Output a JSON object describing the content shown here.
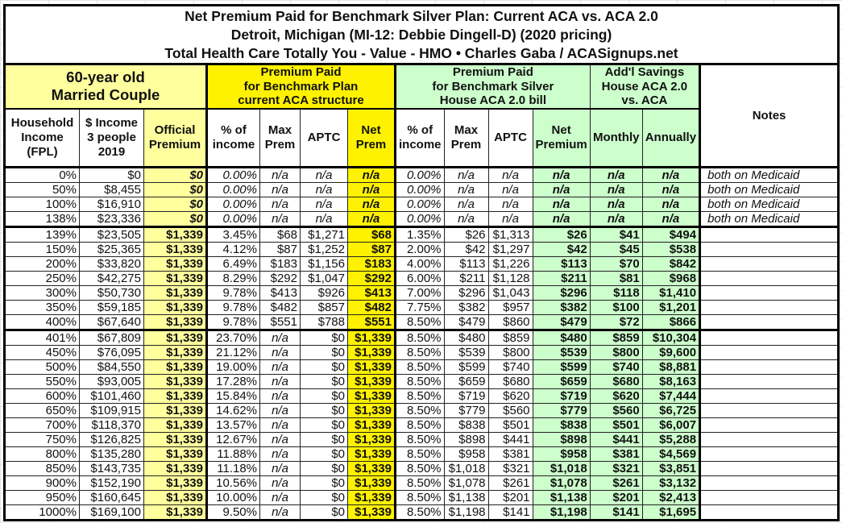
{
  "title": {
    "line1": "Net Premium Paid for Benchmark Silver Plan: Current ACA vs. ACA 2.0",
    "line2": "Detroit, Michigan (MI-12: Debbie Dingell-D) (2020 pricing)",
    "line3": "Total Health Care Totally You - Value - HMO • Charles Gaba / ACASignups.net"
  },
  "groups": {
    "household": "60-year old\nMarried Couple",
    "current": "Premium Paid\nfor Benchmark Plan\ncurrent ACA structure",
    "aca2": "Premium Paid\nfor Benchmark Silver\nHouse ACA 2.0 bill",
    "savings": "Add'l Savings\nHouse ACA 2.0\nvs. ACA",
    "notes": "Notes"
  },
  "columns": [
    "Household\nIncome\n(FPL)",
    "$ Income\n3 people\n2019",
    "Official\nPremium",
    "% of\nincome",
    "Max\nPrem",
    "APTC",
    "Net\nPrem",
    "% of\nincome",
    "Max\nPrem",
    "APTC",
    "Net\nPremium",
    "Monthly",
    "Annually"
  ],
  "colors": {
    "light_yellow": "#ffff9e",
    "yellow": "#fff200",
    "green": "#ccffcc"
  },
  "rows": [
    [
      "0%",
      "$0",
      "$0",
      "0.00%",
      "n/a",
      "n/a",
      "n/a",
      "0.00%",
      "n/a",
      "n/a",
      "n/a",
      "n/a",
      "n/a",
      "both on Medicaid"
    ],
    [
      "50%",
      "$8,455",
      "$0",
      "0.00%",
      "n/a",
      "n/a",
      "n/a",
      "0.00%",
      "n/a",
      "n/a",
      "n/a",
      "n/a",
      "n/a",
      "both on Medicaid"
    ],
    [
      "100%",
      "$16,910",
      "$0",
      "0.00%",
      "n/a",
      "n/a",
      "n/a",
      "0.00%",
      "n/a",
      "n/a",
      "n/a",
      "n/a",
      "n/a",
      "both on Medicaid"
    ],
    [
      "138%",
      "$23,336",
      "$0",
      "0.00%",
      "n/a",
      "n/a",
      "n/a",
      "0.00%",
      "n/a",
      "n/a",
      "n/a",
      "n/a",
      "n/a",
      "both on Medicaid"
    ],
    [
      "139%",
      "$23,505",
      "$1,339",
      "3.45%",
      "$68",
      "$1,271",
      "$68",
      "1.35%",
      "$26",
      "$1,313",
      "$26",
      "$41",
      "$494",
      ""
    ],
    [
      "150%",
      "$25,365",
      "$1,339",
      "4.12%",
      "$87",
      "$1,252",
      "$87",
      "2.00%",
      "$42",
      "$1,297",
      "$42",
      "$45",
      "$538",
      ""
    ],
    [
      "200%",
      "$33,820",
      "$1,339",
      "6.49%",
      "$183",
      "$1,156",
      "$183",
      "4.00%",
      "$113",
      "$1,226",
      "$113",
      "$70",
      "$842",
      ""
    ],
    [
      "250%",
      "$42,275",
      "$1,339",
      "8.29%",
      "$292",
      "$1,047",
      "$292",
      "6.00%",
      "$211",
      "$1,128",
      "$211",
      "$81",
      "$968",
      ""
    ],
    [
      "300%",
      "$50,730",
      "$1,339",
      "9.78%",
      "$413",
      "$926",
      "$413",
      "7.00%",
      "$296",
      "$1,043",
      "$296",
      "$118",
      "$1,410",
      ""
    ],
    [
      "350%",
      "$59,185",
      "$1,339",
      "9.78%",
      "$482",
      "$857",
      "$482",
      "7.75%",
      "$382",
      "$957",
      "$382",
      "$100",
      "$1,201",
      ""
    ],
    [
      "400%",
      "$67,640",
      "$1,339",
      "9.78%",
      "$551",
      "$788",
      "$551",
      "8.50%",
      "$479",
      "$860",
      "$479",
      "$72",
      "$866",
      ""
    ],
    [
      "401%",
      "$67,809",
      "$1,339",
      "23.70%",
      "n/a",
      "$0",
      "$1,339",
      "8.50%",
      "$480",
      "$859",
      "$480",
      "$859",
      "$10,304",
      ""
    ],
    [
      "450%",
      "$76,095",
      "$1,339",
      "21.12%",
      "n/a",
      "$0",
      "$1,339",
      "8.50%",
      "$539",
      "$800",
      "$539",
      "$800",
      "$9,600",
      ""
    ],
    [
      "500%",
      "$84,550",
      "$1,339",
      "19.00%",
      "n/a",
      "$0",
      "$1,339",
      "8.50%",
      "$599",
      "$740",
      "$599",
      "$740",
      "$8,881",
      ""
    ],
    [
      "550%",
      "$93,005",
      "$1,339",
      "17.28%",
      "n/a",
      "$0",
      "$1,339",
      "8.50%",
      "$659",
      "$680",
      "$659",
      "$680",
      "$8,163",
      ""
    ],
    [
      "600%",
      "$101,460",
      "$1,339",
      "15.84%",
      "n/a",
      "$0",
      "$1,339",
      "8.50%",
      "$719",
      "$620",
      "$719",
      "$620",
      "$7,444",
      ""
    ],
    [
      "650%",
      "$109,915",
      "$1,339",
      "14.62%",
      "n/a",
      "$0",
      "$1,339",
      "8.50%",
      "$779",
      "$560",
      "$779",
      "$560",
      "$6,725",
      ""
    ],
    [
      "700%",
      "$118,370",
      "$1,339",
      "13.57%",
      "n/a",
      "$0",
      "$1,339",
      "8.50%",
      "$838",
      "$501",
      "$838",
      "$501",
      "$6,007",
      ""
    ],
    [
      "750%",
      "$126,825",
      "$1,339",
      "12.67%",
      "n/a",
      "$0",
      "$1,339",
      "8.50%",
      "$898",
      "$441",
      "$898",
      "$441",
      "$5,288",
      ""
    ],
    [
      "800%",
      "$135,280",
      "$1,339",
      "11.88%",
      "n/a",
      "$0",
      "$1,339",
      "8.50%",
      "$958",
      "$381",
      "$958",
      "$381",
      "$4,569",
      ""
    ],
    [
      "850%",
      "$143,735",
      "$1,339",
      "11.18%",
      "n/a",
      "$0",
      "$1,339",
      "8.50%",
      "$1,018",
      "$321",
      "$1,018",
      "$321",
      "$3,851",
      ""
    ],
    [
      "900%",
      "$152,190",
      "$1,339",
      "10.56%",
      "n/a",
      "$0",
      "$1,339",
      "8.50%",
      "$1,078",
      "$261",
      "$1,078",
      "$261",
      "$3,132",
      ""
    ],
    [
      "950%",
      "$160,645",
      "$1,339",
      "10.00%",
      "n/a",
      "$0",
      "$1,339",
      "8.50%",
      "$1,138",
      "$201",
      "$1,138",
      "$201",
      "$2,413",
      ""
    ],
    [
      "1000%",
      "$169,100",
      "$1,339",
      "9.50%",
      "n/a",
      "$0",
      "$1,339",
      "8.50%",
      "$1,198",
      "$141",
      "$1,198",
      "$141",
      "$1,695",
      ""
    ]
  ]
}
